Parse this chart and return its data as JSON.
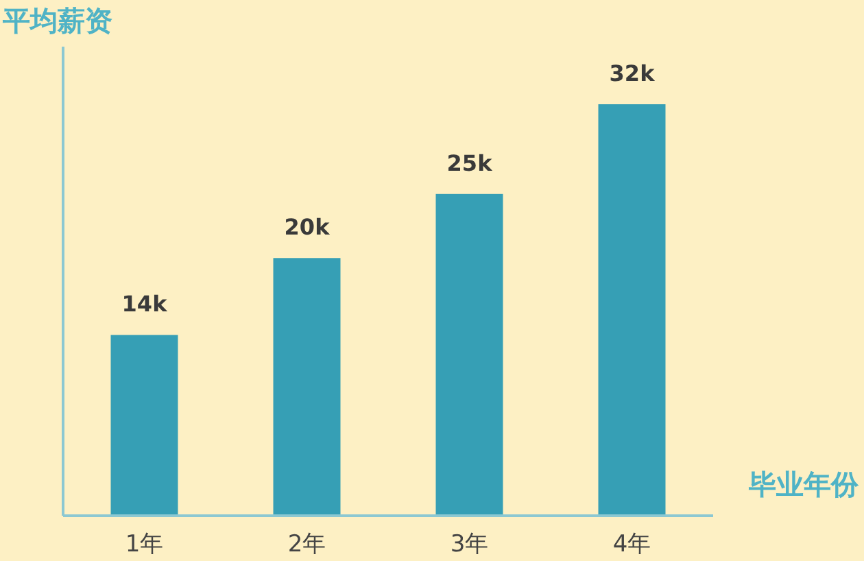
{
  "chart_data": {
    "type": "bar",
    "ylabel": "平均薪资",
    "xlabel": "毕业年份",
    "categories": [
      "1年",
      "2年",
      "3年",
      "4年"
    ],
    "values": [
      14,
      20,
      25,
      32
    ],
    "value_labels": [
      "14k",
      "20k",
      "25k",
      "32k"
    ],
    "color": "#369fb5"
  }
}
